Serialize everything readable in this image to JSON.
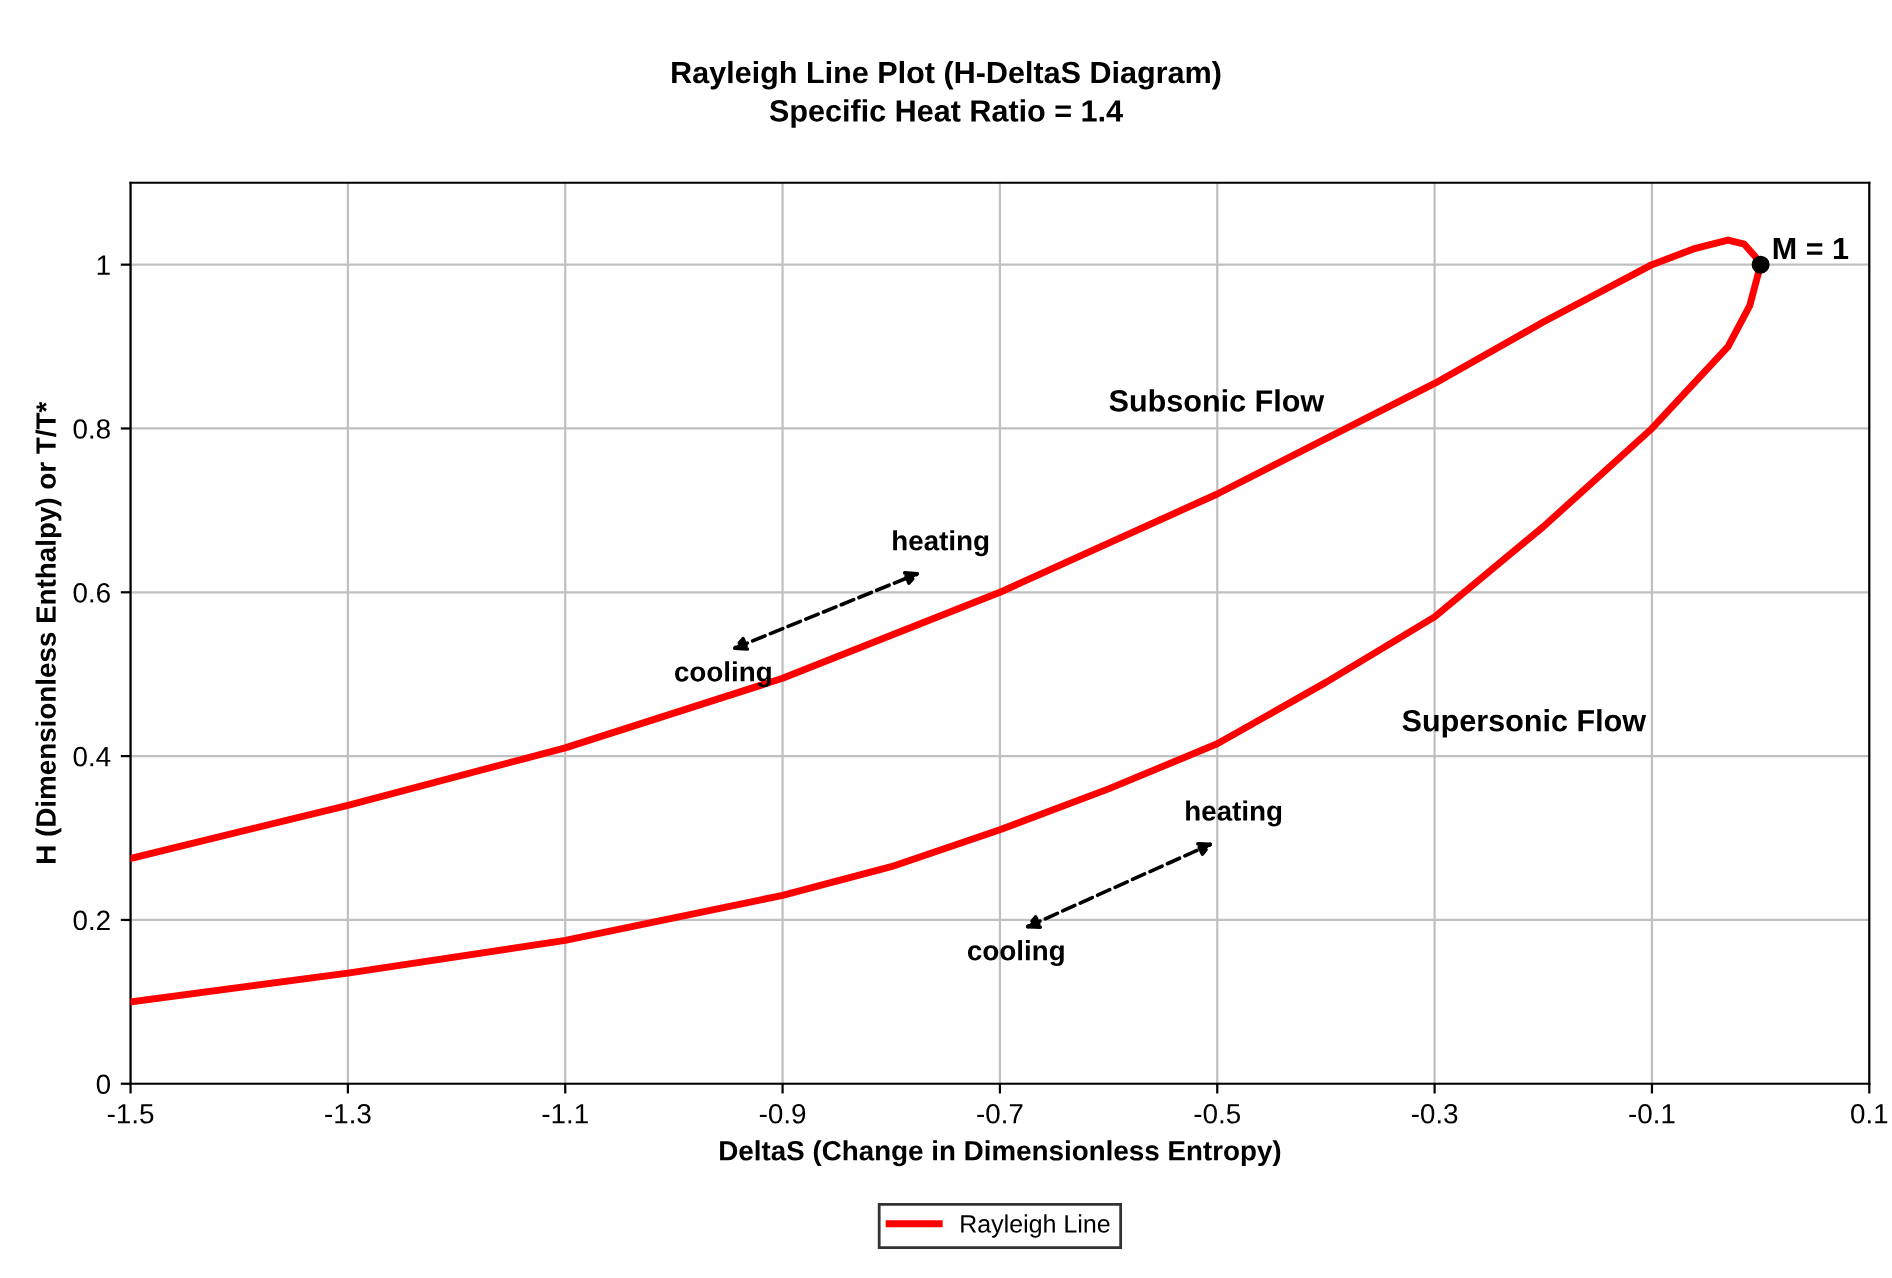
{
  "chart_data": {
    "type": "line",
    "title": "Rayleigh Line Plot (H-DeltaS Diagram)",
    "subtitle": "Specific Heat Ratio = 1.4",
    "xlabel": "DeltaS (Change in Dimensionless Entropy)",
    "ylabel": "H (Dimensionless Enthalpy) or T/T*",
    "xlim": [
      -1.5,
      0.1
    ],
    "xticks": [
      -1.5,
      -1.3,
      -1.1,
      -0.9,
      -0.7,
      -0.5,
      -0.3,
      -0.1,
      0.1
    ],
    "ylim": [
      0,
      1.1
    ],
    "yticks": [
      0,
      0.2,
      0.4,
      0.6,
      0.8,
      1
    ],
    "grid": true,
    "legend": "bottom",
    "marker": "none",
    "line_style": "solid",
    "series": [
      {
        "name": "Rayleigh Line",
        "color": "#ff0000",
        "x": [
          -1.5,
          -1.3,
          -1.1,
          -0.9,
          -0.7,
          -0.5,
          -0.3,
          -0.2,
          -0.1,
          -0.06,
          -0.03,
          -0.015,
          -0.005,
          0,
          -0.01,
          -0.03,
          -0.1,
          -0.2,
          -0.3,
          -0.4,
          -0.5,
          -0.6,
          -0.7,
          -0.8,
          -0.9,
          -1.1,
          -1.3,
          -1.5
        ],
        "values": [
          0.275,
          0.34,
          0.41,
          0.495,
          0.6,
          0.72,
          0.855,
          0.93,
          1.0,
          1.02,
          1.03,
          1.025,
          1.01,
          1.0,
          0.95,
          0.9,
          0.8,
          0.68,
          0.57,
          0.49,
          0.415,
          0.36,
          0.31,
          0.265,
          0.23,
          0.175,
          0.135,
          0.1
        ]
      },
      {
        "type": "scatter",
        "color": "#000000",
        "x": [
          0
        ],
        "values": [
          1
        ],
        "marker": "circle"
      }
    ],
    "annotations": [
      {
        "text": "M = 1",
        "x": 0,
        "y": 1
      },
      "Subsonic Flow",
      "heating",
      "cooling",
      "Supersonic Flow",
      "heating",
      "cooling"
    ]
  }
}
